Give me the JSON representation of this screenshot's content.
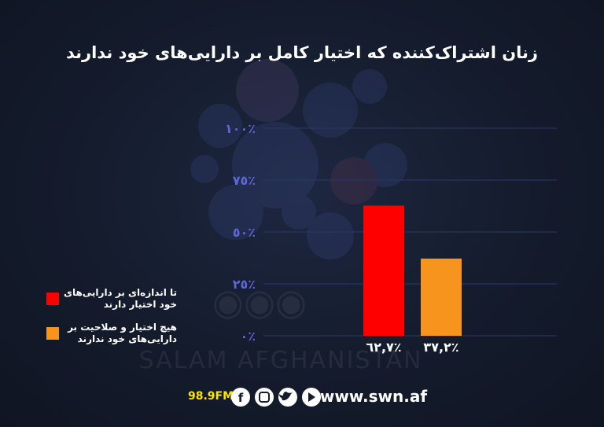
{
  "chart_data": {
    "type": "bar",
    "title": "زنان اشتراک‌کننده که اختیار کامل بر دارایی‌های خود ندارند",
    "categories": [
      "تا اندازه‌ای بر دارایی‌های خود اختیار دارند",
      "هیچ اختیار و صلاحیت بر دارایی‌های خود ندارند"
    ],
    "values": [
      62.7,
      37.2
    ],
    "value_labels": [
      "٦٢,٧٪",
      "٣٧,٢٪"
    ],
    "colors": [
      "#ff0000",
      "#f7941d"
    ],
    "ylim": [
      0,
      100
    ],
    "yticks": [
      {
        "value": 0,
        "label": "٠٪"
      },
      {
        "value": 25,
        "label": "٢٥٪"
      },
      {
        "value": 50,
        "label": "٥٠٪"
      },
      {
        "value": 75,
        "label": "٧٥٪"
      },
      {
        "value": 100,
        "label": "١٠٠٪"
      }
    ],
    "grid": true,
    "legend": "left"
  },
  "footer": {
    "radio": "98.9FM",
    "website": "www.swn.af",
    "watermark": "SALAM AFGHANISTAN"
  }
}
